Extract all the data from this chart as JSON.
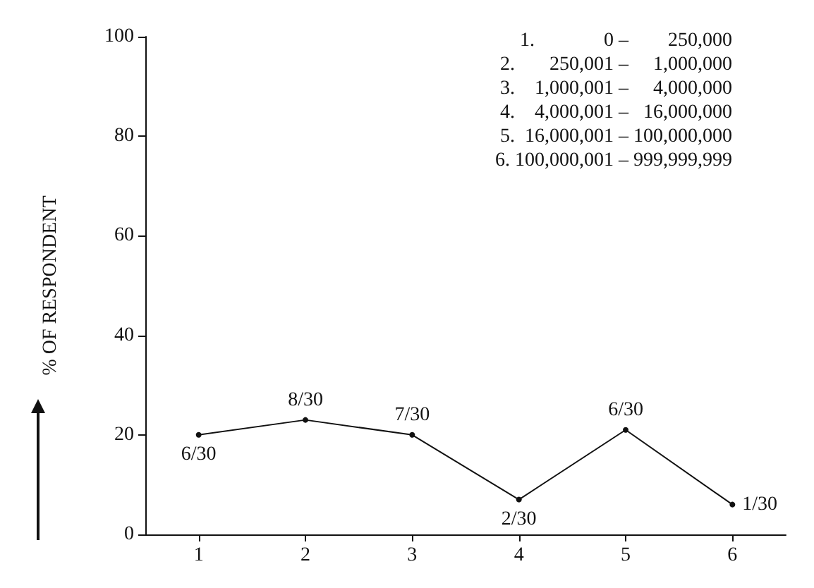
{
  "chart_data": {
    "type": "line",
    "ylabel": "% OF RESPONDENT",
    "categories": [
      "1",
      "2",
      "3",
      "4",
      "5",
      "6"
    ],
    "values": [
      20,
      23,
      20,
      7,
      21,
      6
    ],
    "value_labels": [
      "6/30",
      "8/30",
      "7/30",
      "2/30",
      "6/30",
      "1/30"
    ],
    "color": "#111111",
    "marker": "circle",
    "line_style": "solid",
    "grid": false,
    "ylim": [
      0,
      100
    ],
    "yticks": [
      0,
      20,
      40,
      60,
      80,
      100
    ],
    "annotations": [
      "1.              0 –        250,000",
      "2.       250,001 –     1,000,000",
      "3.    1,000,001 –     4,000,000",
      "4.    4,000,001 –   16,000,000",
      "5.  16,000,001 – 100,000,000",
      "6. 100,000,001 – 999,999,999"
    ]
  }
}
